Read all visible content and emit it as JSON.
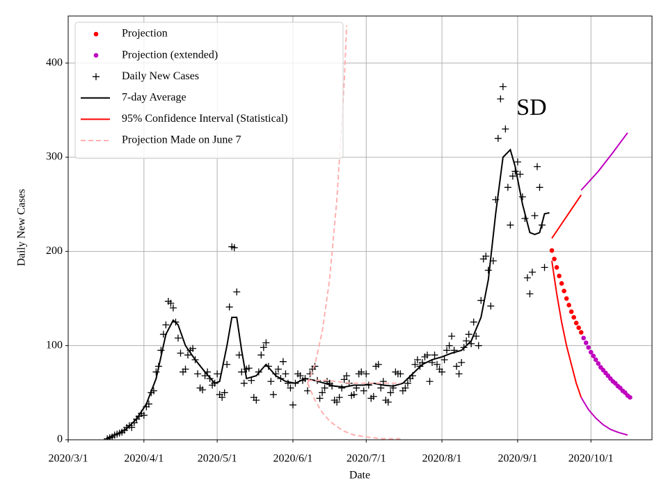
{
  "chart_data": {
    "type": "line",
    "xlabel": "Date",
    "ylabel": "Daily New Cases",
    "annotation": "SD",
    "xlim": [
      "2020/3/1",
      "2020/10/26"
    ],
    "xticks": [
      "2020/3/1",
      "2020/4/1",
      "2020/5/1",
      "2020/6/1",
      "2020/7/1",
      "2020/8/1",
      "2020/9/1",
      "2020/10/1"
    ],
    "ylim": [
      0,
      450
    ],
    "yticks": [
      0,
      100,
      200,
      300,
      400
    ],
    "grid": true,
    "legend": "upper left",
    "series": [
      {
        "name": "Projection",
        "style": "dots",
        "color": "#ff0000",
        "x": [
          "2020/9/15",
          "2020/9/16",
          "2020/9/17",
          "2020/9/18",
          "2020/9/19",
          "2020/9/20",
          "2020/9/21",
          "2020/9/22",
          "2020/9/23",
          "2020/9/24",
          "2020/9/25",
          "2020/9/26",
          "2020/9/27"
        ],
        "values": [
          201,
          192,
          183,
          174,
          166,
          158,
          150,
          143,
          136,
          130,
          124,
          119,
          114
        ]
      },
      {
        "name": "Projection (extended)",
        "style": "dots",
        "color": "#bf00bf",
        "x": [
          "2020/9/28",
          "2020/9/29",
          "2020/9/30",
          "2020/10/1",
          "2020/10/2",
          "2020/10/3",
          "2020/10/4",
          "2020/10/5",
          "2020/10/6",
          "2020/10/7",
          "2020/10/8",
          "2020/10/9",
          "2020/10/10",
          "2020/10/11",
          "2020/10/12",
          "2020/10/13",
          "2020/10/14",
          "2020/10/15",
          "2020/10/16",
          "2020/10/17"
        ],
        "values": [
          108,
          103,
          98,
          93,
          89,
          85,
          81,
          77,
          74,
          71,
          68,
          65,
          62,
          60,
          57,
          55,
          52,
          50,
          47,
          45
        ]
      },
      {
        "name": "Daily New Cases",
        "style": "plus",
        "color": "#000000",
        "x": [
          "2020/3/17",
          "2020/3/18",
          "2020/3/19",
          "2020/3/20",
          "2020/3/21",
          "2020/3/22",
          "2020/3/23",
          "2020/3/24",
          "2020/3/25",
          "2020/3/26",
          "2020/3/27",
          "2020/3/28",
          "2020/3/29",
          "2020/3/30",
          "2020/3/31",
          "2020/4/1",
          "2020/4/2",
          "2020/4/3",
          "2020/4/4",
          "2020/4/5",
          "2020/4/6",
          "2020/4/7",
          "2020/4/8",
          "2020/4/9",
          "2020/4/10",
          "2020/4/11",
          "2020/4/12",
          "2020/4/13",
          "2020/4/14",
          "2020/4/15",
          "2020/4/16",
          "2020/4/17",
          "2020/4/18",
          "2020/4/19",
          "2020/4/20",
          "2020/4/21",
          "2020/4/22",
          "2020/4/23",
          "2020/4/24",
          "2020/4/25",
          "2020/4/26",
          "2020/4/27",
          "2020/4/28",
          "2020/4/29",
          "2020/4/30",
          "2020/5/1",
          "2020/5/2",
          "2020/5/3",
          "2020/5/4",
          "2020/5/5",
          "2020/5/6",
          "2020/5/7",
          "2020/5/8",
          "2020/5/9",
          "2020/5/10",
          "2020/5/11",
          "2020/5/12",
          "2020/5/13",
          "2020/5/14",
          "2020/5/15",
          "2020/5/16",
          "2020/5/17",
          "2020/5/18",
          "2020/5/19",
          "2020/5/20",
          "2020/5/21",
          "2020/5/22",
          "2020/5/23",
          "2020/5/24",
          "2020/5/25",
          "2020/5/26",
          "2020/5/27",
          "2020/5/28",
          "2020/5/29",
          "2020/5/30",
          "2020/5/31",
          "2020/6/1",
          "2020/6/2",
          "2020/6/3",
          "2020/6/4",
          "2020/6/5",
          "2020/6/6",
          "2020/6/7",
          "2020/6/8",
          "2020/6/9",
          "2020/6/10",
          "2020/6/11",
          "2020/6/12",
          "2020/6/13",
          "2020/6/14",
          "2020/6/15",
          "2020/6/16",
          "2020/6/17",
          "2020/6/18",
          "2020/6/19",
          "2020/6/20",
          "2020/6/21",
          "2020/6/22",
          "2020/6/23",
          "2020/6/24",
          "2020/6/25",
          "2020/6/26",
          "2020/6/27",
          "2020/6/28",
          "2020/6/29",
          "2020/6/30",
          "2020/7/1",
          "2020/7/2",
          "2020/7/3",
          "2020/7/4",
          "2020/7/5",
          "2020/7/6",
          "2020/7/7",
          "2020/7/8",
          "2020/7/9",
          "2020/7/10",
          "2020/7/11",
          "2020/7/12",
          "2020/7/13",
          "2020/7/14",
          "2020/7/15",
          "2020/7/16",
          "2020/7/17",
          "2020/7/18",
          "2020/7/19",
          "2020/7/20",
          "2020/7/21",
          "2020/7/22",
          "2020/7/23",
          "2020/7/24",
          "2020/7/25",
          "2020/7/26",
          "2020/7/27",
          "2020/7/28",
          "2020/7/29",
          "2020/7/30",
          "2020/7/31",
          "2020/8/1",
          "2020/8/2",
          "2020/8/3",
          "2020/8/4",
          "2020/8/5",
          "2020/8/6",
          "2020/8/7",
          "2020/8/8",
          "2020/8/9",
          "2020/8/10",
          "2020/8/11",
          "2020/8/12",
          "2020/8/13",
          "2020/8/14",
          "2020/8/15",
          "2020/8/16",
          "2020/8/17",
          "2020/8/18",
          "2020/8/19",
          "2020/8/20",
          "2020/8/21",
          "2020/8/22",
          "2020/8/23",
          "2020/8/24",
          "2020/8/25",
          "2020/8/26",
          "2020/8/27",
          "2020/8/28",
          "2020/8/29",
          "2020/8/30",
          "2020/8/31",
          "2020/9/1",
          "2020/9/2",
          "2020/9/3",
          "2020/9/4",
          "2020/9/5",
          "2020/9/6",
          "2020/9/7",
          "2020/9/8",
          "2020/9/9",
          "2020/9/10",
          "2020/9/11",
          "2020/9/12"
        ],
        "values": [
          1,
          2,
          3,
          5,
          6,
          7,
          8,
          10,
          13,
          15,
          13,
          18,
          22,
          25,
          28,
          26,
          35,
          38,
          50,
          52,
          72,
          78,
          95,
          112,
          122,
          147,
          145,
          140,
          125,
          108,
          92,
          72,
          75,
          90,
          95,
          97,
          85,
          70,
          55,
          53,
          68,
          72,
          65,
          58,
          60,
          70,
          48,
          45,
          50,
          80,
          141,
          205,
          204,
          157,
          90,
          72,
          60,
          75,
          76,
          63,
          45,
          42,
          72,
          90,
          98,
          103,
          78,
          62,
          48,
          70,
          75,
          65,
          83,
          70,
          60,
          55,
          37,
          60,
          70,
          68,
          63,
          65,
          52,
          70,
          75,
          78,
          63,
          44,
          50,
          55,
          62,
          60,
          57,
          42,
          40,
          45,
          55,
          64,
          68,
          60,
          47,
          48,
          55,
          70,
          72,
          52,
          70,
          58,
          44,
          46,
          78,
          80,
          55,
          62,
          42,
          40,
          50,
          55,
          72,
          70,
          70,
          52,
          55,
          60,
          65,
          68,
          80,
          85,
          78,
          82,
          88,
          90,
          62,
          82,
          90,
          80,
          75,
          72,
          85,
          95,
          100,
          110,
          95,
          78,
          70,
          82,
          98,
          105,
          112,
          102,
          125,
          110,
          100,
          148,
          192,
          195,
          180,
          142,
          190,
          255,
          320,
          362,
          375,
          330,
          268,
          228,
          280,
          285,
          295,
          282,
          258,
          235,
          172,
          155,
          178,
          238,
          290,
          268,
          228,
          183
        ]
      },
      {
        "name": "7-day Average",
        "style": "solid",
        "color": "#000000",
        "x": [
          "2020/3/17",
          "2020/3/21",
          "2020/3/25",
          "2020/3/29",
          "2020/4/2",
          "2020/4/6",
          "2020/4/10",
          "2020/4/13",
          "2020/4/15",
          "2020/4/18",
          "2020/4/22",
          "2020/4/26",
          "2020/4/30",
          "2020/5/2",
          "2020/5/5",
          "2020/5/7",
          "2020/5/9",
          "2020/5/11",
          "2020/5/13",
          "2020/5/17",
          "2020/5/21",
          "2020/5/25",
          "2020/5/29",
          "2020/6/2",
          "2020/6/6",
          "2020/6/10",
          "2020/6/14",
          "2020/6/18",
          "2020/6/22",
          "2020/6/26",
          "2020/6/30",
          "2020/7/4",
          "2020/7/8",
          "2020/7/12",
          "2020/7/16",
          "2020/7/20",
          "2020/7/24",
          "2020/7/28",
          "2020/8/1",
          "2020/8/5",
          "2020/8/9",
          "2020/8/13",
          "2020/8/17",
          "2020/8/20",
          "2020/8/23",
          "2020/8/26",
          "2020/8/29",
          "2020/8/31",
          "2020/9/3",
          "2020/9/6",
          "2020/9/8",
          "2020/9/10",
          "2020/9/12",
          "2020/9/14"
        ],
        "values": [
          2,
          6,
          12,
          22,
          38,
          65,
          112,
          127,
          122,
          100,
          85,
          72,
          60,
          62,
          100,
          130,
          130,
          95,
          65,
          68,
          80,
          68,
          62,
          60,
          65,
          63,
          60,
          57,
          56,
          58,
          58,
          60,
          58,
          57,
          60,
          70,
          80,
          85,
          88,
          92,
          95,
          105,
          130,
          170,
          240,
          300,
          308,
          290,
          250,
          220,
          218,
          220,
          240,
          241
        ]
      },
      {
        "name": "95% Confidence Interval (Statistical)",
        "style": "solid",
        "color": "#ff0000",
        "x": [
          "2020/9/15",
          "2020/9/21",
          "2020/9/27",
          null,
          "2020/9/15",
          "2020/9/17",
          "2020/9/19",
          "2020/9/21",
          "2020/9/23",
          "2020/9/25",
          "2020/9/27"
        ],
        "values": [
          214,
          237,
          260,
          null,
          190,
          155,
          125,
          100,
          80,
          60,
          45
        ]
      },
      {
        "style": "solid",
        "color": "#bf00bf",
        "x": [
          "2020/9/27",
          "2020/10/4",
          "2020/10/10",
          "2020/10/16",
          null,
          "2020/9/27",
          "2020/9/30",
          "2020/10/3",
          "2020/10/6",
          "2020/10/9",
          "2020/10/12",
          "2020/10/16"
        ],
        "values": [
          265,
          285,
          305,
          326,
          null,
          45,
          32,
          23,
          16,
          11,
          8,
          5
        ]
      },
      {
        "name": "Projection Made on June 7",
        "style": "dashed",
        "color": "#ffb0b0",
        "x": [
          "2020/6/7",
          "2020/6/10",
          "2020/6/13",
          "2020/6/16",
          "2020/6/19",
          "2020/6/22",
          "2020/6/23",
          null,
          "2020/6/7",
          "2020/6/10",
          "2020/6/13",
          "2020/6/16",
          "2020/6/19",
          "2020/6/22",
          "2020/6/26",
          "2020/7/1",
          "2020/7/8",
          "2020/7/15",
          null,
          "2020/6/7",
          "2020/6/15",
          "2020/6/25",
          "2020/7/5",
          "2020/7/15"
        ],
        "values": [
          60,
          80,
          115,
          170,
          255,
          380,
          440,
          null,
          60,
          42,
          29,
          20,
          14,
          9,
          5,
          3,
          1,
          1,
          null,
          63,
          63,
          60,
          60,
          60
        ]
      }
    ]
  }
}
